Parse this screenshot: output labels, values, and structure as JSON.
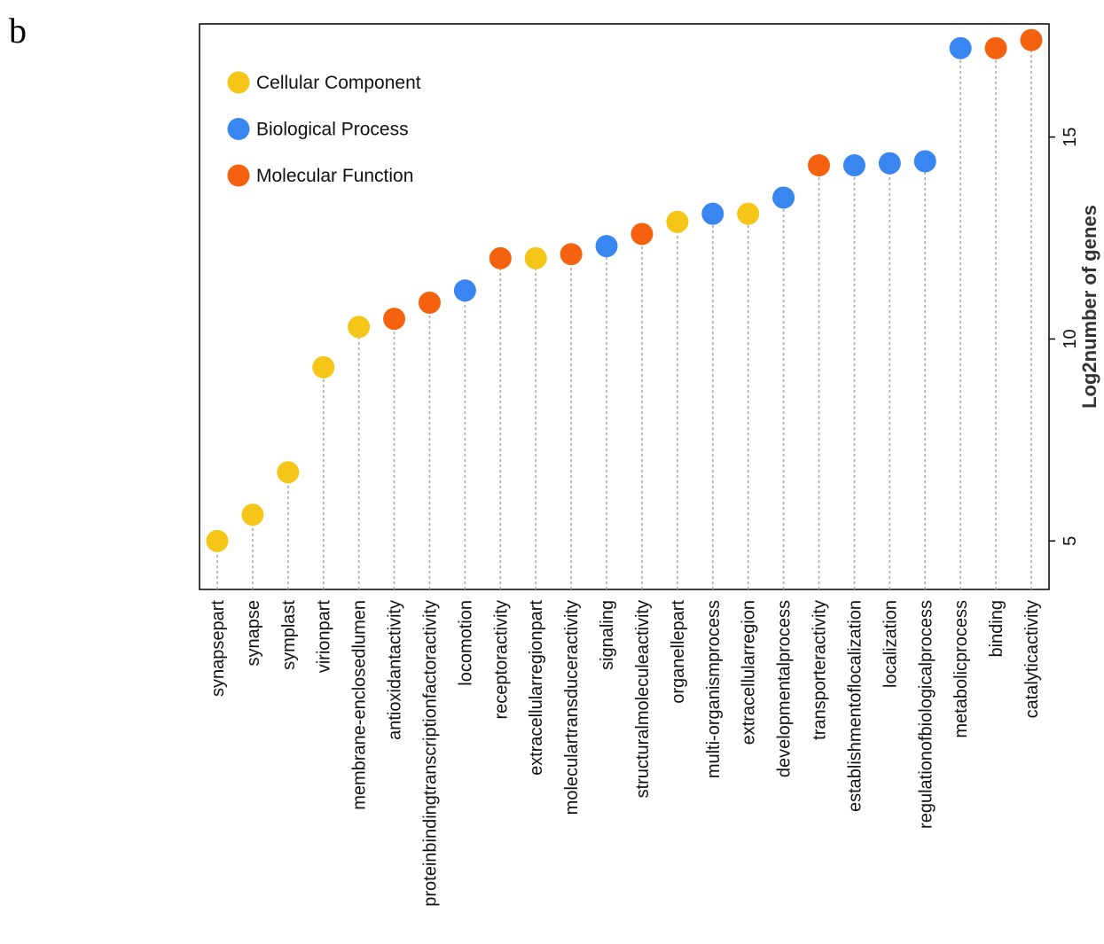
{
  "panel_label": "b",
  "chart_data": {
    "type": "scatter",
    "subtype": "lollipop",
    "ylabel": "Log2number of genes",
    "ylim": [
      3.8,
      17.8
    ],
    "yticks": [
      5,
      10,
      15
    ],
    "legend_position": "top-left",
    "legend": [
      {
        "name": "Cellular Component",
        "color": "#F5C518"
      },
      {
        "name": "Biological Process",
        "color": "#3A86F0"
      },
      {
        "name": "Molecular Function",
        "color": "#F5620F"
      }
    ],
    "categories": [
      "synapsepart",
      "synapse",
      "symplast",
      "virionpart",
      "membrane-enclosedlumen",
      "antioxidantactivity",
      "proteinbindingtranscriptionfactoractivity",
      "locomotion",
      "receptoractivity",
      "extracellularregionpart",
      "moleculartransduceractivity",
      "signaling",
      "structuralmoleculeactivity",
      "organellepart",
      "multi-organismprocess",
      "extracellularregion",
      "developmentalprocess",
      "transporteractivity",
      "establishmentoflocalization",
      "localization",
      "regulationofbiologicalprocess",
      "metabolicprocess",
      "binding",
      "catalyticactivity"
    ],
    "values": [
      5.0,
      5.65,
      6.7,
      9.3,
      10.3,
      10.5,
      10.9,
      11.2,
      12.0,
      12.0,
      12.1,
      12.3,
      12.6,
      12.9,
      13.1,
      13.1,
      13.5,
      14.3,
      14.3,
      14.35,
      14.4,
      17.2,
      17.2,
      17.4
    ],
    "groups": [
      "Cellular Component",
      "Cellular Component",
      "Cellular Component",
      "Cellular Component",
      "Cellular Component",
      "Molecular Function",
      "Molecular Function",
      "Biological Process",
      "Molecular Function",
      "Cellular Component",
      "Molecular Function",
      "Biological Process",
      "Molecular Function",
      "Cellular Component",
      "Biological Process",
      "Cellular Component",
      "Biological Process",
      "Molecular Function",
      "Biological Process",
      "Biological Process",
      "Biological Process",
      "Biological Process",
      "Molecular Function",
      "Molecular Function"
    ]
  }
}
